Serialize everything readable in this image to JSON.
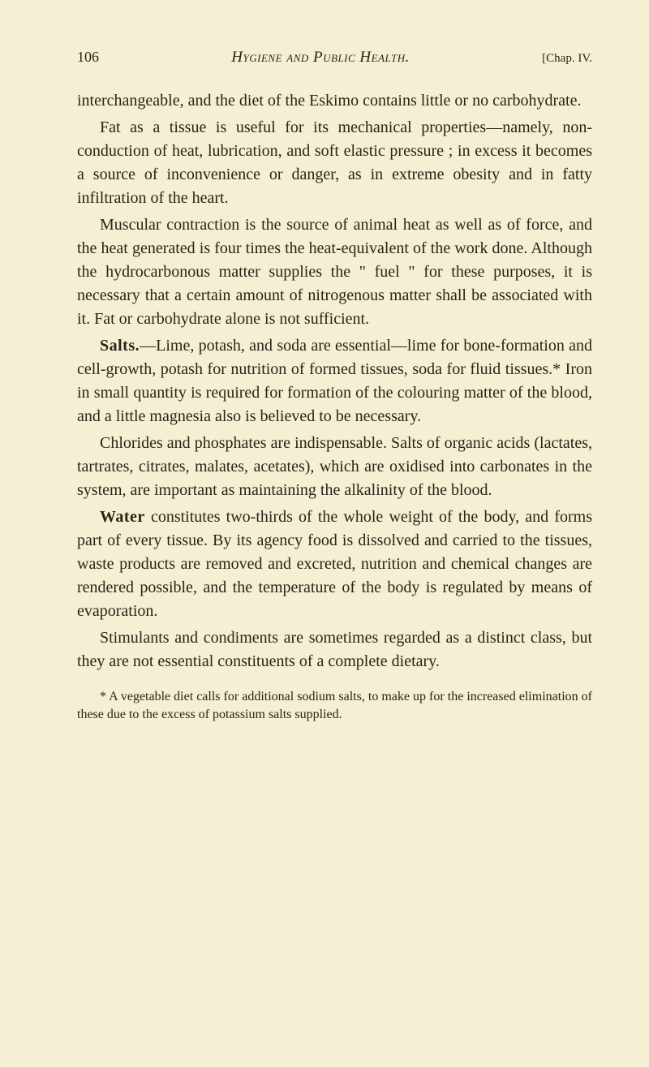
{
  "header": {
    "page_number": "106",
    "title": "Hygiene and Public Health.",
    "chapter": "[Chap. IV."
  },
  "paragraphs": {
    "p1": "interchangeable, and the diet of the Eskimo contains little or no carbohydrate.",
    "p2": "Fat as a tissue is useful for its mechanical properties—namely, non-conduction of heat, lubrication, and soft elastic pressure ; in excess it becomes a source of inconvenience or danger, as in extreme obesity and in fatty infiltration of the heart.",
    "p3": "Muscular contraction is the source of animal heat as well as of force, and the heat generated is four times the heat-equivalent of the work done. Although the hydrocarbonous matter supplies the \" fuel \" for these purposes, it is necessary that a certain amount of nitrogenous matter shall be associated with it. Fat or carbohydrate alone is not sufficient.",
    "p4_label": "Salts.",
    "p4": "—Lime, potash, and soda are essential—lime for bone-formation and cell-growth, potash for nutrition of formed tissues, soda for fluid tissues.* Iron in small quantity is required for formation of the colouring matter of the blood, and a little magnesia also is believed to be necessary.",
    "p5": "Chlorides and phosphates are indispensable. Salts of organic acids (lactates, tartrates, citrates, malates, acetates), which are oxidised into carbonates in the system, are important as maintaining the alkalinity of the blood.",
    "p6_label": "Water",
    "p6": " constitutes two-thirds of the whole weight of the body, and forms part of every tissue. By its agency food is dissolved and carried to the tissues, waste products are removed and excreted, nutrition and chemical changes are rendered possible, and the temperature of the body is regulated by means of evaporation.",
    "p7": "Stimulants and condiments are sometimes regarded as a distinct class, but they are not essential constituents of a complete dietary.",
    "footnote": "* A vegetable diet calls for additional sodium salts, to make up for the increased elimination of these due to the excess of potassium salts supplied."
  },
  "colors": {
    "background": "#f5efd4",
    "text": "#2a2418"
  }
}
